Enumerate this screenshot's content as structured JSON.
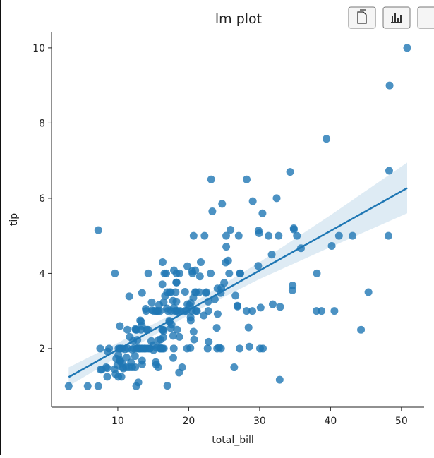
{
  "chart_data": {
    "type": "scatter",
    "title": "lm plot",
    "x_label": "total_bill",
    "y_label": "tip",
    "color": "#1f77b4",
    "xlim": [
      0.65,
      53.2
    ],
    "ylim": [
      0.44,
      10.43
    ],
    "xticks": [
      10,
      20,
      30,
      40,
      50
    ],
    "yticks": [
      2,
      4,
      6,
      8,
      10
    ],
    "grid": false,
    "x": [
      16.99,
      10.34,
      21.01,
      23.68,
      24.59,
      25.29,
      8.77,
      26.88,
      15.04,
      14.78,
      10.27,
      35.26,
      15.42,
      18.43,
      14.83,
      21.58,
      10.33,
      16.29,
      16.97,
      20.65,
      17.92,
      20.29,
      15.77,
      39.42,
      19.82,
      17.81,
      13.37,
      12.69,
      21.7,
      19.65,
      9.55,
      18.35,
      15.06,
      20.69,
      17.78,
      24.06,
      16.31,
      16.93,
      18.69,
      31.27,
      16.04,
      17.46,
      13.94,
      9.68,
      30.4,
      18.29,
      22.23,
      32.4,
      28.55,
      18.04,
      12.54,
      10.29,
      34.81,
      9.94,
      25.56,
      19.49,
      38.01,
      26.41,
      11.24,
      48.27,
      20.29,
      13.81,
      11.02,
      18.29,
      17.59,
      20.08,
      16.45,
      3.07,
      20.23,
      15.01,
      12.02,
      17.07,
      26.86,
      25.28,
      14.73,
      10.51,
      17.92,
      27.2,
      22.76,
      17.29,
      19.44,
      16.66,
      10.07,
      32.68,
      15.98,
      34.83,
      13.03,
      18.28,
      24.71,
      21.16,
      28.97,
      22.49,
      5.75,
      16.32,
      22.75,
      40.17,
      27.28,
      12.03,
      21.01,
      12.46,
      11.35,
      15.38,
      44.3,
      22.42,
      20.92,
      15.36,
      20.49,
      25.21,
      18.24,
      14.31,
      14.0,
      7.25,
      38.07,
      23.95,
      25.71,
      17.31,
      29.93,
      10.65,
      12.43,
      24.08,
      11.69,
      13.42,
      14.26,
      15.95,
      12.48,
      29.8,
      8.52,
      14.52,
      11.38,
      22.82,
      19.08,
      20.27,
      11.17,
      12.26,
      18.26,
      8.51,
      10.33,
      14.15,
      16.0,
      13.16,
      17.47,
      34.3,
      41.19,
      27.05,
      16.43,
      8.35,
      18.64,
      11.87,
      9.78,
      7.51,
      14.07,
      13.13,
      17.26,
      24.55,
      19.77,
      29.85,
      48.17,
      25.0,
      13.39,
      16.49,
      21.5,
      12.66,
      16.21,
      13.81,
      17.51,
      24.52,
      20.76,
      31.71,
      10.59,
      10.63,
      50.81,
      15.81,
      7.25,
      31.85,
      16.82,
      32.9,
      17.89,
      14.48,
      9.6,
      34.63,
      34.65,
      23.33,
      45.35,
      23.17,
      40.55,
      20.69,
      20.9,
      30.46,
      18.15,
      23.1,
      15.69,
      19.81,
      28.44,
      15.48,
      16.58,
      7.56,
      10.34,
      43.11,
      13.0,
      13.51,
      18.71,
      12.74,
      13.0,
      16.4,
      20.53,
      16.47,
      26.59,
      38.73,
      24.27,
      12.76,
      30.06,
      25.89,
      48.33,
      13.27,
      28.17,
      12.9,
      28.15,
      11.59,
      7.74,
      30.14,
      12.16,
      13.42,
      8.58,
      15.98,
      13.42,
      16.27,
      10.09,
      20.45,
      13.28,
      22.12,
      24.01,
      15.69,
      11.61,
      10.77,
      15.53,
      10.07,
      12.6,
      32.83,
      35.83,
      29.03,
      27.18,
      22.67,
      17.82,
      18.78
    ],
    "values": [
      1.01,
      1.66,
      3.5,
      3.31,
      3.61,
      4.71,
      2.0,
      3.12,
      1.96,
      3.23,
      1.71,
      5.0,
      1.57,
      3.0,
      3.02,
      3.92,
      1.67,
      3.71,
      3.5,
      3.35,
      4.08,
      2.75,
      2.23,
      7.58,
      3.18,
      2.34,
      2.0,
      2.0,
      4.3,
      3.0,
      1.45,
      2.5,
      3.0,
      2.45,
      3.27,
      3.6,
      2.0,
      3.07,
      2.31,
      5.0,
      2.24,
      2.54,
      3.06,
      1.32,
      5.6,
      3.0,
      5.0,
      6.0,
      2.05,
      3.0,
      2.5,
      2.6,
      5.2,
      1.56,
      4.34,
      3.51,
      3.0,
      1.5,
      1.76,
      6.73,
      3.21,
      2.0,
      1.98,
      3.76,
      2.64,
      3.15,
      2.47,
      1.0,
      2.01,
      2.09,
      1.97,
      3.0,
      3.14,
      5.0,
      2.2,
      1.25,
      3.08,
      4.0,
      3.0,
      2.71,
      3.0,
      3.4,
      1.83,
      5.0,
      2.03,
      5.17,
      2.0,
      4.0,
      5.85,
      3.0,
      3.0,
      3.5,
      1.0,
      4.3,
      3.25,
      4.73,
      4.0,
      1.5,
      3.0,
      1.5,
      2.5,
      3.0,
      2.5,
      3.48,
      4.08,
      1.64,
      4.06,
      4.29,
      3.76,
      4.0,
      3.0,
      1.0,
      4.0,
      2.55,
      4.0,
      3.5,
      5.07,
      1.5,
      1.8,
      2.92,
      2.31,
      1.68,
      2.5,
      2.0,
      2.52,
      4.2,
      1.48,
      2.0,
      2.0,
      2.18,
      1.5,
      2.83,
      1.5,
      2.0,
      3.25,
      1.25,
      2.0,
      2.0,
      2.0,
      2.75,
      3.5,
      6.7,
      5.0,
      5.0,
      2.3,
      1.5,
      1.36,
      1.63,
      1.73,
      2.0,
      2.5,
      2.0,
      2.74,
      2.0,
      2.0,
      5.14,
      5.0,
      3.75,
      2.61,
      2.0,
      3.5,
      2.5,
      2.0,
      2.0,
      3.0,
      3.48,
      2.24,
      4.5,
      1.61,
      2.0,
      10.0,
      3.16,
      5.15,
      3.18,
      4.0,
      3.11,
      2.0,
      2.0,
      4.0,
      3.55,
      3.68,
      5.65,
      3.5,
      6.5,
      3.0,
      5.0,
      3.5,
      2.0,
      3.5,
      4.0,
      1.5,
      4.19,
      2.56,
      2.02,
      4.0,
      1.44,
      2.0,
      5.0,
      2.0,
      2.0,
      4.0,
      2.01,
      2.0,
      2.5,
      4.0,
      3.23,
      3.41,
      3.0,
      2.03,
      2.23,
      2.0,
      5.16,
      9.0,
      2.5,
      6.5,
      1.1,
      3.0,
      1.5,
      1.44,
      3.09,
      2.2,
      3.48,
      1.92,
      3.0,
      1.58,
      2.5,
      2.0,
      3.0,
      2.72,
      2.88,
      2.0,
      3.0,
      3.39,
      1.47,
      3.0,
      1.25,
      1.0,
      1.17,
      4.67,
      5.92,
      2.0,
      2.0,
      1.75,
      3.0
    ],
    "fit": {
      "x": [
        3.07,
        50.81
      ],
      "values": [
        1.24,
        6.27
      ]
    },
    "band": {
      "x": [
        3.07,
        10,
        20,
        30,
        40,
        50.81
      ],
      "lower": [
        1.0,
        1.78,
        2.9,
        3.85,
        4.7,
        5.6
      ],
      "upper": [
        1.5,
        2.15,
        3.15,
        4.3,
        5.55,
        6.95
      ]
    }
  }
}
